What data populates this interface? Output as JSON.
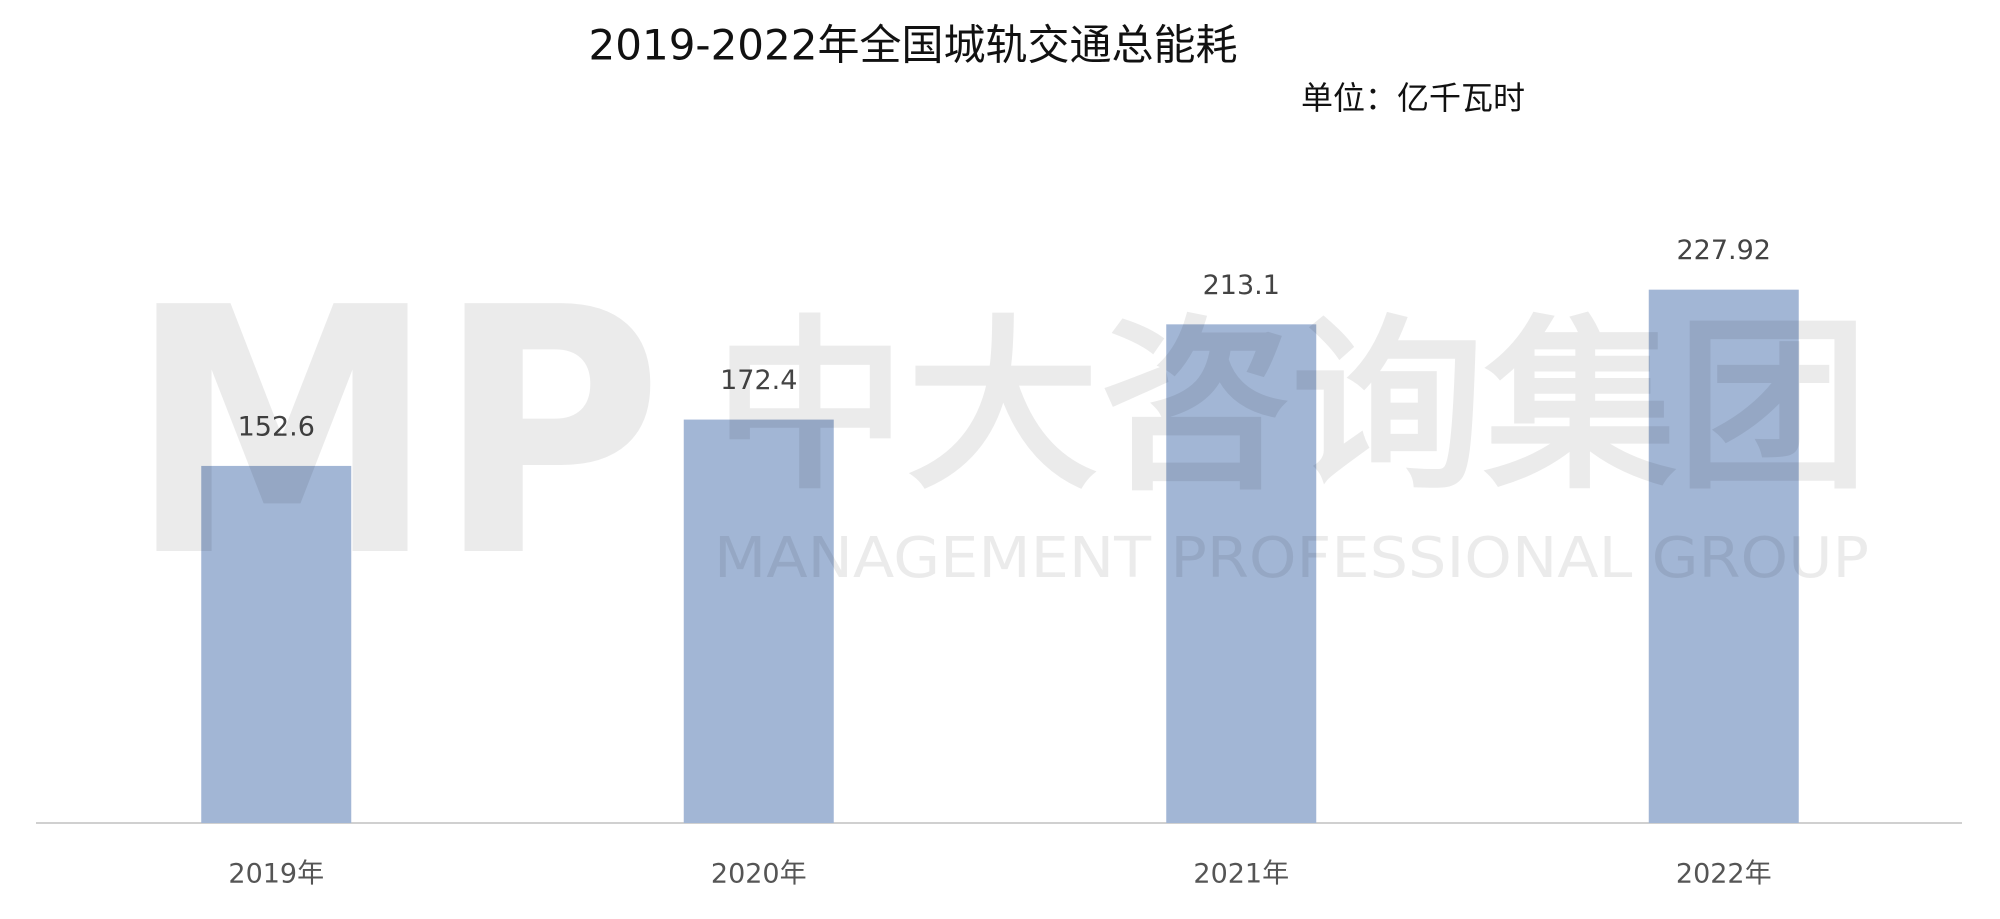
{
  "chart_data": {
    "type": "bar",
    "title": "2019-2022年全国城轨交通总能耗",
    "subtitle": "单位：亿千瓦时",
    "categories": [
      "2019年",
      "2020年",
      "2021年",
      "2022年"
    ],
    "values": [
      152.6,
      172.4,
      213.1,
      227.92
    ],
    "color": "#a2b6d5"
  },
  "watermark": {
    "logo": "MP",
    "name": "中大咨询集团",
    "english": "MANAGEMENT PROFESSIONAL GROUP"
  }
}
